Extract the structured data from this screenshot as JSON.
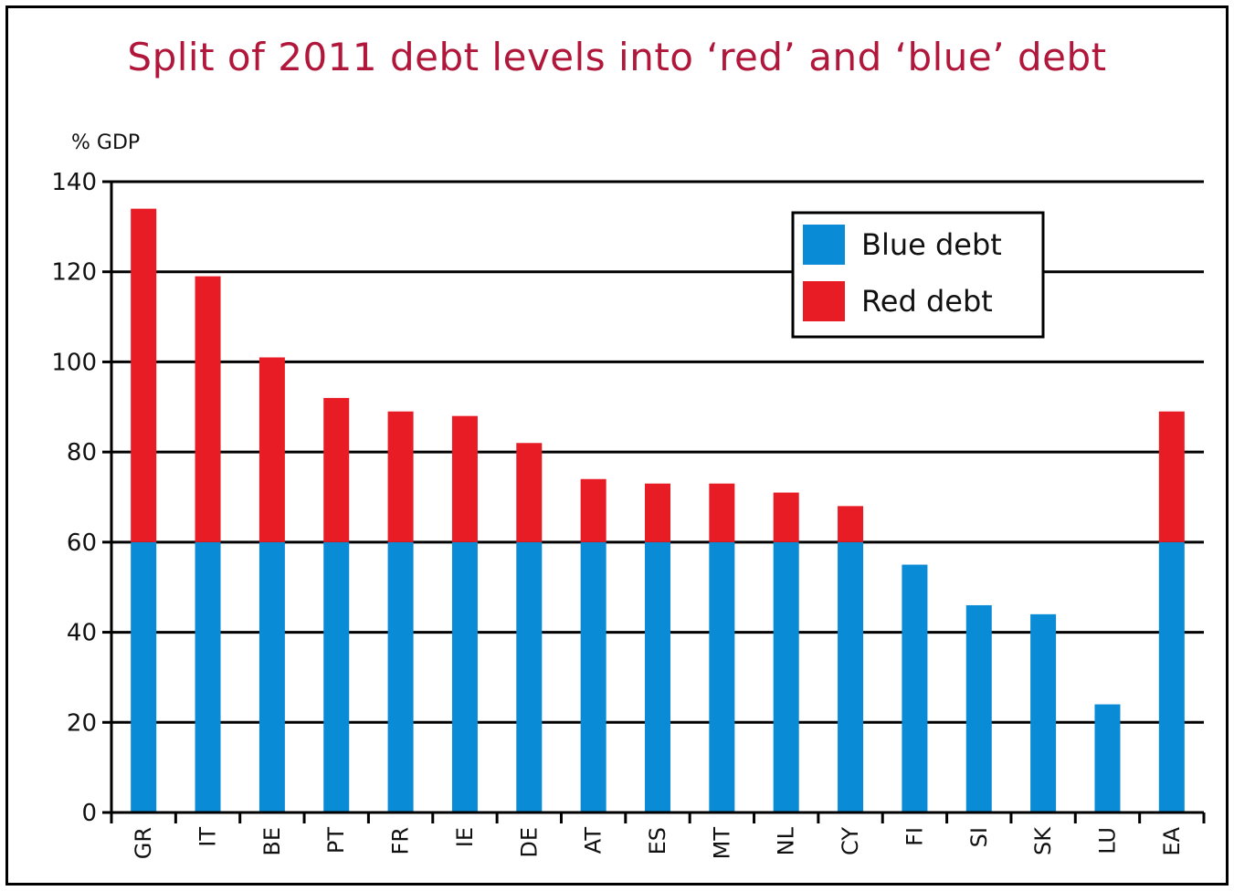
{
  "chart_data": {
    "type": "bar",
    "stacked": true,
    "title": "Split of 2011 debt levels into ‘red’ and ‘blue’ debt",
    "ylabel": "% GDP",
    "xlabel": "",
    "ylim": [
      0,
      140
    ],
    "yticks": [
      0,
      20,
      40,
      60,
      80,
      100,
      120,
      140
    ],
    "grid": true,
    "legend_position": "top-right",
    "categories": [
      "GR",
      "IT",
      "BE",
      "PT",
      "FR",
      "IE",
      "DE",
      "AT",
      "ES",
      "MT",
      "NL",
      "CY",
      "FI",
      "SI",
      "SK",
      "LU",
      "EA"
    ],
    "series": [
      {
        "name": "Blue debt",
        "color": "#0a8bd6",
        "values": [
          60,
          60,
          60,
          60,
          60,
          60,
          60,
          60,
          60,
          60,
          60,
          60,
          55,
          46,
          44,
          24,
          60
        ]
      },
      {
        "name": "Red debt",
        "color": "#e81c24",
        "values": [
          74,
          59,
          41,
          32,
          29,
          28,
          22,
          14,
          13,
          13,
          11,
          8,
          0,
          0,
          0,
          0,
          29
        ]
      }
    ]
  }
}
